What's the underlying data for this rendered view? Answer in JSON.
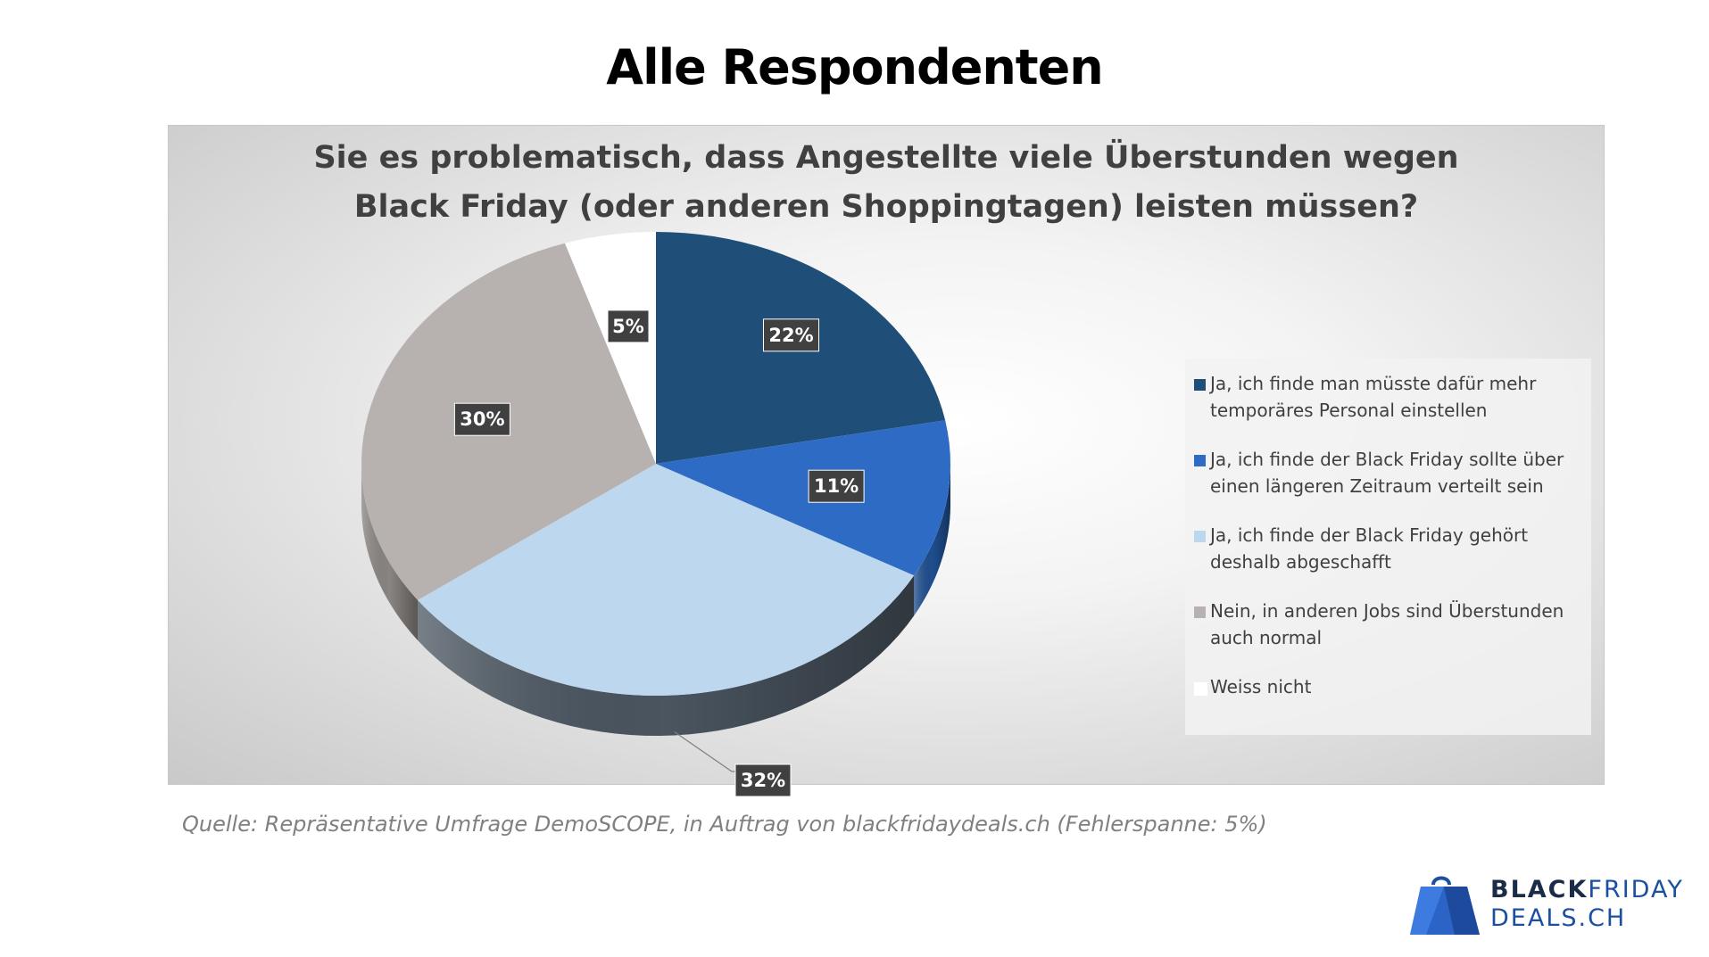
{
  "page": {
    "title": "Alle Respondenten",
    "source": "Quelle: Repräsentative Umfrage DemoSCOPE, in Auftrag von blackfridaydeals.ch (Fehlerspanne: 5%)"
  },
  "logo": {
    "word1": "BLACK",
    "word2": "FRIDAY",
    "word3": "DEALS.CH"
  },
  "chart_data": {
    "type": "pie",
    "title_lines": [
      "Sie es problematisch, dass Angestellte viele Überstunden wegen",
      "Black Friday (oder anderen Shoppingtagen) leisten müssen?"
    ],
    "categories": [
      "Ja, ich finde man müsste dafür mehr temporäres Personal einstellen",
      "Ja, ich finde der Black Friday sollte über einen längeren Zeitraum verteilt sein",
      "Ja, ich finde der Black Friday gehört deshalb abgeschafft",
      "Nein, in anderen Jobs sind Überstunden auch normal",
      "Weiss nicht"
    ],
    "values": [
      22,
      11,
      32,
      30,
      5
    ],
    "labels": [
      "22%",
      "11%",
      "32%",
      "30%",
      "5%"
    ],
    "colors": [
      "#1f4e79",
      "#2e6bc4",
      "#bdd7ee",
      "#b7b2b0",
      "#ffffff"
    ],
    "side_colors": [
      "#163a5a",
      "#1f4e8f",
      "#4a5560",
      "#8a8582",
      "#d0d0d0"
    ],
    "legend_position": "right",
    "style": "3d-pie"
  }
}
